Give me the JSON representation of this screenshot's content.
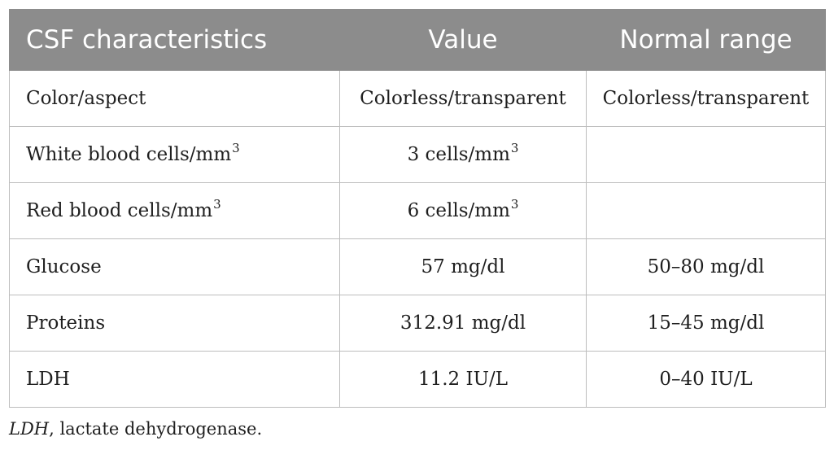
{
  "table": {
    "headers": [
      "CSF characteristics",
      "Value",
      "Normal range"
    ],
    "rows": [
      {
        "label": "Color/aspect",
        "label_sup": "",
        "value": "Colorless/transparent",
        "value_sup": "",
        "range": "Colorless/transparent"
      },
      {
        "label": "White blood cells/mm",
        "label_sup": "3",
        "value": "3 cells/mm",
        "value_sup": "3",
        "range": ""
      },
      {
        "label": "Red blood cells/mm",
        "label_sup": "3",
        "value": "6 cells/mm",
        "value_sup": "3",
        "range": ""
      },
      {
        "label": "Glucose",
        "label_sup": "",
        "value": "57 mg/dl",
        "value_sup": "",
        "range": "50–80 mg/dl"
      },
      {
        "label": "Proteins",
        "label_sup": "",
        "value": "312.91 mg/dl",
        "value_sup": "",
        "range": "15–45 mg/dl"
      },
      {
        "label": "LDH",
        "label_sup": "",
        "value": "11.2 IU/L",
        "value_sup": "",
        "range": "0–40 IU/L"
      }
    ]
  },
  "footnote": {
    "abbr": "LDH",
    "text": ", lactate dehydrogenase."
  },
  "colors": {
    "header_background": "#8c8c8c",
    "header_text": "#ffffff",
    "cell_border": "#bdbdbd",
    "body_text": "#1f1f1f"
  }
}
